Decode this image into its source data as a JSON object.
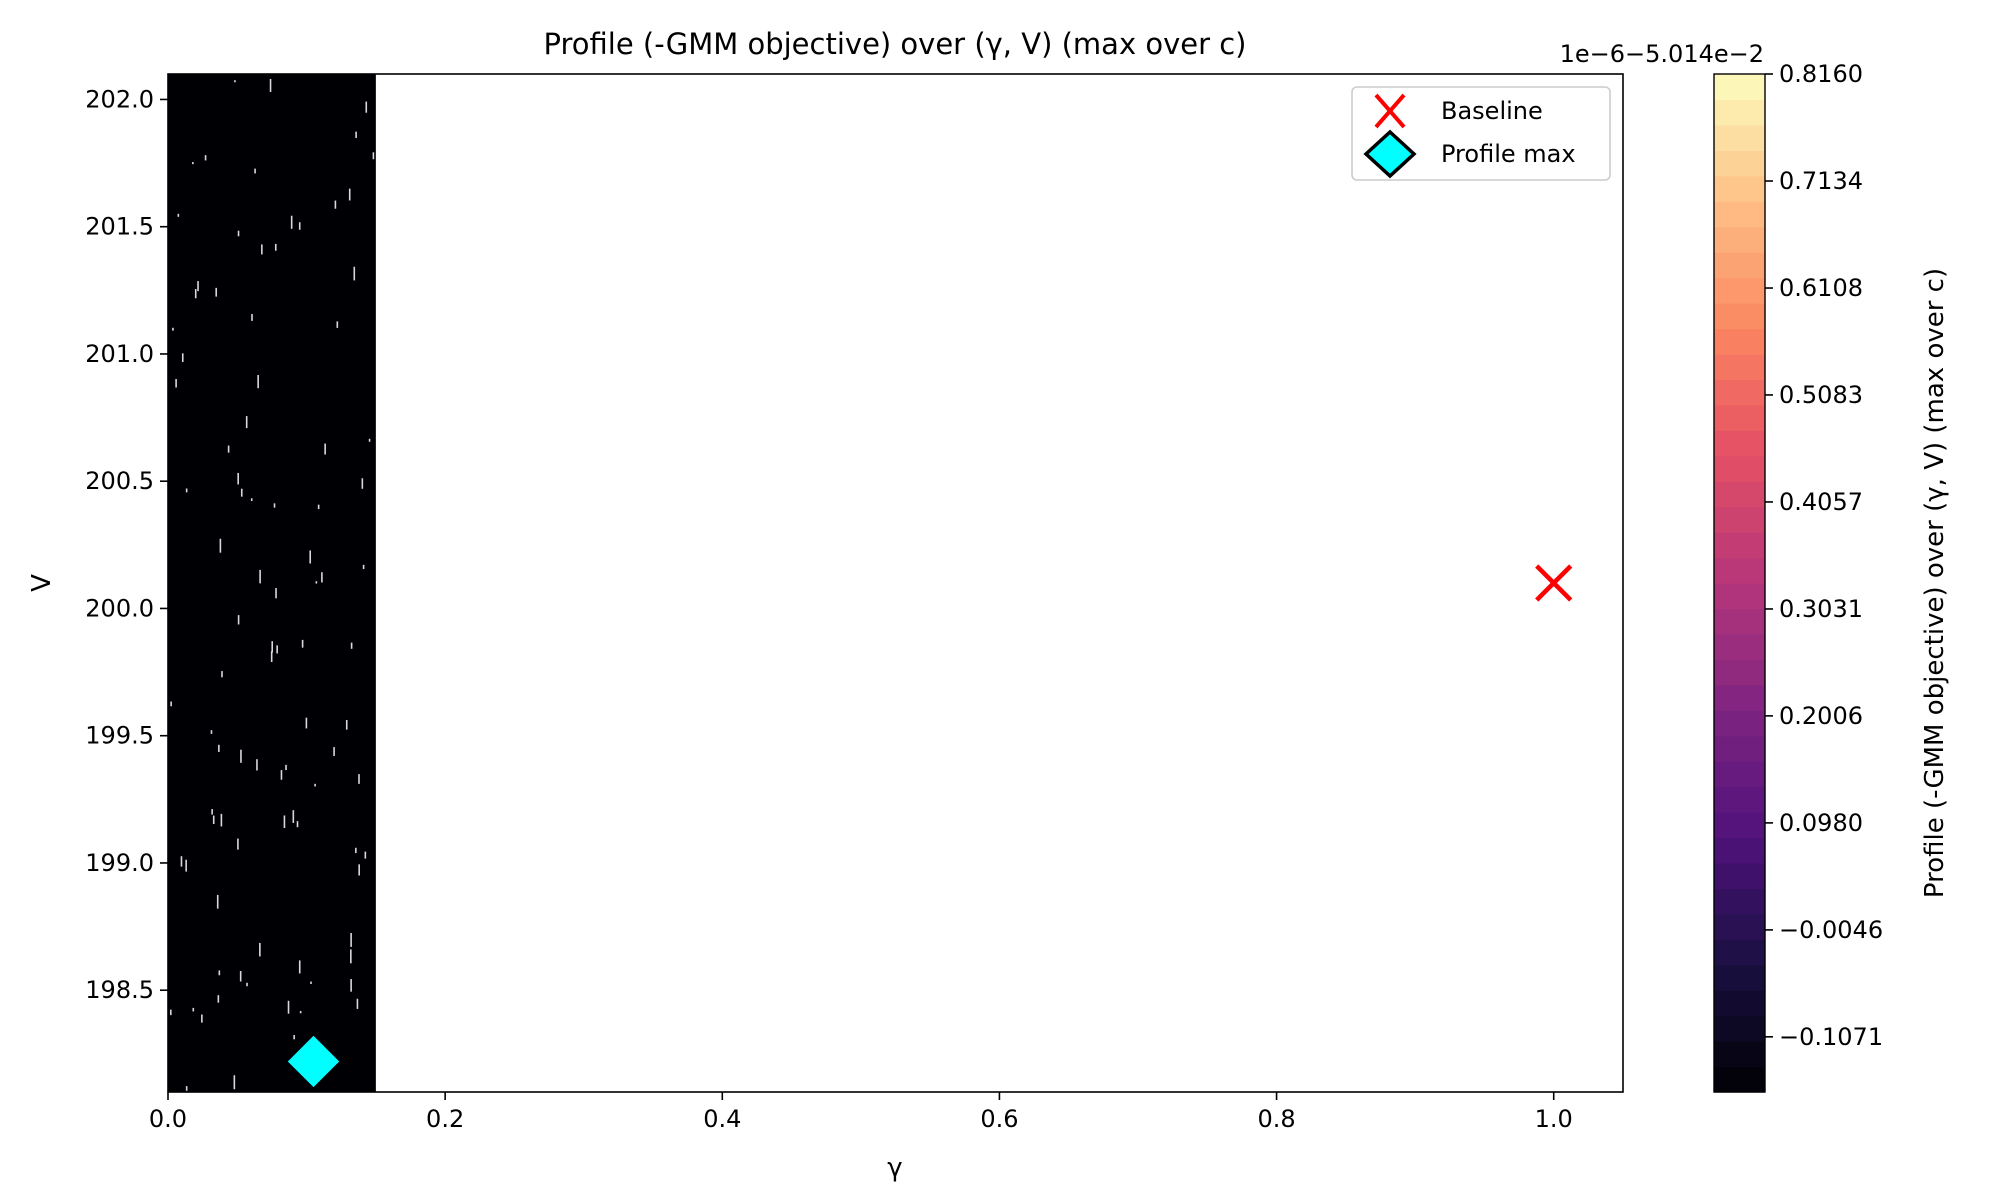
{
  "chart_data": {
    "type": "heatmap",
    "title": "Profile (-GMM objective) over (γ, V) (max over c)",
    "xlabel": "γ",
    "ylabel": "V",
    "xlim": [
      0.0,
      1.05
    ],
    "ylim": [
      198.1,
      202.1
    ],
    "x_ticks": [
      0.0,
      0.2,
      0.4,
      0.6,
      0.8,
      1.0
    ],
    "x_tick_labels": [
      "0.0",
      "0.2",
      "0.4",
      "0.6",
      "0.8",
      "1.0"
    ],
    "y_ticks": [
      198.5,
      199.0,
      199.5,
      200.0,
      200.5,
      201.0,
      201.5,
      202.0
    ],
    "y_tick_labels": [
      "198.5",
      "199.0",
      "199.5",
      "200.0",
      "200.5",
      "201.0",
      "201.5",
      "202.0"
    ],
    "grid": false,
    "filled_region": {
      "x_range": [
        0.0,
        0.15
      ],
      "y_range": [
        198.1,
        202.1
      ],
      "color": "#000004"
    },
    "markers": [
      {
        "name": "Baseline",
        "x": 1.0,
        "y": 200.1,
        "symbol": "x",
        "color": "#ff0000"
      },
      {
        "name": "Profile max",
        "x": 0.105,
        "y": 198.22,
        "symbol": "diamond",
        "color": "#00ffff",
        "edge_color": "#000000"
      }
    ],
    "legend": {
      "placement": "top-right",
      "entries": [
        "Baseline",
        "Profile max"
      ]
    },
    "colorbar": {
      "label": "Profile (-GMM objective) over (γ, V) (max over c)",
      "offset_text": "1e−6−5.014e−2",
      "colormap": "magma",
      "range": [
        -0.16,
        0.816
      ],
      "ticks": [
        -0.1071,
        -0.0046,
        0.098,
        0.2006,
        0.3031,
        0.4057,
        0.5083,
        0.6108,
        0.7134,
        0.816
      ],
      "tick_labels": [
        "−0.1071",
        "−0.0046",
        "0.0980",
        "0.2006",
        "0.3031",
        "0.4057",
        "0.5083",
        "0.6108",
        "0.7134",
        "0.8160"
      ],
      "levels": 40
    }
  }
}
